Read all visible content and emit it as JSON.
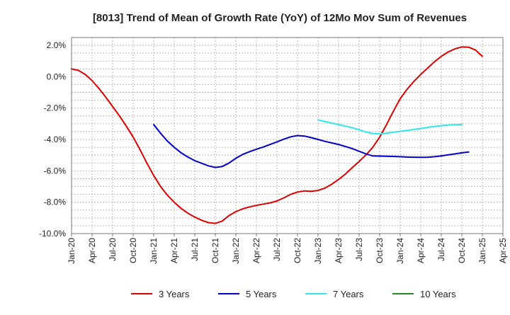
{
  "chart_data": {
    "type": "line",
    "title": "[8013]  Trend of Mean of Growth Rate (YoY) of 12Mo Mov Sum of Revenues",
    "xlabel": "",
    "ylabel": "",
    "ylim": [
      -10,
      2.5
    ],
    "yticks": [
      2,
      0,
      -2,
      -4,
      -6,
      -8,
      -10
    ],
    "ytick_labels": [
      "2.0%",
      "0.0%",
      "-2.0%",
      "-4.0%",
      "-6.0%",
      "-8.0%",
      "-10.0%"
    ],
    "xticks": [
      "Jan-20",
      "Apr-20",
      "Jul-20",
      "Oct-20",
      "Jan-21",
      "Apr-21",
      "Jul-21",
      "Oct-21",
      "Jan-22",
      "Apr-22",
      "Jul-22",
      "Oct-22",
      "Jan-23",
      "Apr-23",
      "Jul-23",
      "Oct-23",
      "Jan-24",
      "Apr-24",
      "Jul-24",
      "Oct-24",
      "Jan-25",
      "Apr-25"
    ],
    "grid": true,
    "legend_position": "bottom",
    "series": [
      {
        "name": "3 Years",
        "color": "#dd0000",
        "points": [
          [
            0,
            0.5
          ],
          [
            1,
            0.4
          ],
          [
            2,
            0.15
          ],
          [
            3,
            -0.25
          ],
          [
            4,
            -0.75
          ],
          [
            5,
            -1.3
          ],
          [
            6,
            -1.9
          ],
          [
            7,
            -2.5
          ],
          [
            8,
            -3.15
          ],
          [
            9,
            -3.85
          ],
          [
            10,
            -4.65
          ],
          [
            11,
            -5.5
          ],
          [
            12,
            -6.3
          ],
          [
            13,
            -7.0
          ],
          [
            14,
            -7.55
          ],
          [
            15,
            -8.0
          ],
          [
            16,
            -8.4
          ],
          [
            17,
            -8.7
          ],
          [
            18,
            -8.95
          ],
          [
            19,
            -9.15
          ],
          [
            20,
            -9.3
          ],
          [
            21,
            -9.35
          ],
          [
            22,
            -9.2
          ],
          [
            23,
            -8.85
          ],
          [
            24,
            -8.6
          ],
          [
            25,
            -8.42
          ],
          [
            26,
            -8.3
          ],
          [
            27,
            -8.2
          ],
          [
            28,
            -8.12
          ],
          [
            29,
            -8.04
          ],
          [
            30,
            -7.92
          ],
          [
            31,
            -7.72
          ],
          [
            32,
            -7.5
          ],
          [
            33,
            -7.35
          ],
          [
            34,
            -7.28
          ],
          [
            35,
            -7.3
          ],
          [
            36,
            -7.25
          ],
          [
            37,
            -7.1
          ],
          [
            38,
            -6.85
          ],
          [
            39,
            -6.55
          ],
          [
            40,
            -6.2
          ],
          [
            41,
            -5.8
          ],
          [
            42,
            -5.4
          ],
          [
            43,
            -4.98
          ],
          [
            44,
            -4.5
          ],
          [
            45,
            -3.85
          ],
          [
            46,
            -3.05
          ],
          [
            47,
            -2.2
          ],
          [
            48,
            -1.4
          ],
          [
            49,
            -0.8
          ],
          [
            50,
            -0.3
          ],
          [
            51,
            0.15
          ],
          [
            52,
            0.55
          ],
          [
            53,
            0.95
          ],
          [
            54,
            1.3
          ],
          [
            55,
            1.58
          ],
          [
            56,
            1.78
          ],
          [
            57,
            1.9
          ],
          [
            58,
            1.88
          ],
          [
            59,
            1.7
          ],
          [
            60,
            1.3
          ]
        ]
      },
      {
        "name": "5 Years",
        "color": "#0000cc",
        "points": [
          [
            12,
            -3.05
          ],
          [
            13,
            -3.6
          ],
          [
            14,
            -4.1
          ],
          [
            15,
            -4.5
          ],
          [
            16,
            -4.85
          ],
          [
            17,
            -5.12
          ],
          [
            18,
            -5.35
          ],
          [
            19,
            -5.52
          ],
          [
            20,
            -5.68
          ],
          [
            21,
            -5.78
          ],
          [
            22,
            -5.72
          ],
          [
            23,
            -5.5
          ],
          [
            24,
            -5.2
          ],
          [
            25,
            -4.95
          ],
          [
            26,
            -4.78
          ],
          [
            27,
            -4.62
          ],
          [
            28,
            -4.48
          ],
          [
            29,
            -4.32
          ],
          [
            30,
            -4.15
          ],
          [
            31,
            -3.98
          ],
          [
            32,
            -3.83
          ],
          [
            33,
            -3.75
          ],
          [
            34,
            -3.78
          ],
          [
            35,
            -3.88
          ],
          [
            36,
            -4.0
          ],
          [
            37,
            -4.12
          ],
          [
            38,
            -4.22
          ],
          [
            39,
            -4.32
          ],
          [
            40,
            -4.45
          ],
          [
            41,
            -4.58
          ],
          [
            42,
            -4.75
          ],
          [
            43,
            -4.92
          ],
          [
            44,
            -5.05
          ],
          [
            45,
            -5.06
          ],
          [
            46,
            -5.07
          ],
          [
            47,
            -5.08
          ],
          [
            48,
            -5.1
          ],
          [
            49,
            -5.12
          ],
          [
            50,
            -5.13
          ],
          [
            51,
            -5.14
          ],
          [
            52,
            -5.13
          ],
          [
            53,
            -5.1
          ],
          [
            54,
            -5.05
          ],
          [
            55,
            -4.98
          ],
          [
            56,
            -4.92
          ],
          [
            57,
            -4.85
          ],
          [
            58,
            -4.8
          ]
        ]
      },
      {
        "name": "7 Years",
        "color": "#33e5e5",
        "points": [
          [
            36,
            -2.75
          ],
          [
            37,
            -2.85
          ],
          [
            38,
            -2.95
          ],
          [
            39,
            -3.05
          ],
          [
            40,
            -3.15
          ],
          [
            41,
            -3.25
          ],
          [
            42,
            -3.38
          ],
          [
            43,
            -3.52
          ],
          [
            44,
            -3.62
          ],
          [
            45,
            -3.65
          ],
          [
            46,
            -3.6
          ],
          [
            47,
            -3.54
          ],
          [
            48,
            -3.48
          ],
          [
            49,
            -3.42
          ],
          [
            50,
            -3.36
          ],
          [
            51,
            -3.3
          ],
          [
            52,
            -3.23
          ],
          [
            53,
            -3.17
          ],
          [
            54,
            -3.12
          ],
          [
            55,
            -3.08
          ],
          [
            56,
            -3.06
          ],
          [
            57,
            -3.05
          ]
        ]
      },
      {
        "name": "10 Years",
        "color": "#228822",
        "points": []
      }
    ]
  }
}
